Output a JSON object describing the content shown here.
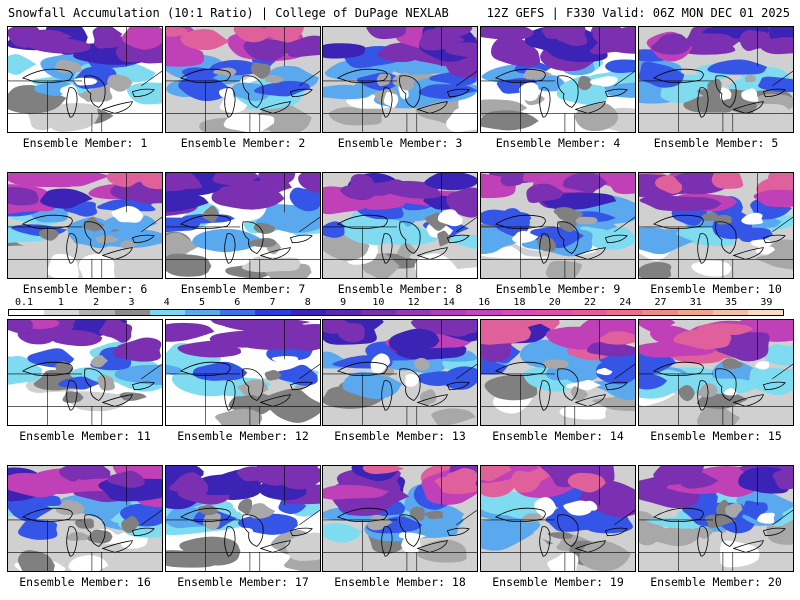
{
  "header": {
    "left": "Snowfall Accumulation (10:1 Ratio) | College of DuPage NEXLAB",
    "right": "12Z GEFS | F330 Valid: 06Z MON DEC 01 2025"
  },
  "members": [
    {
      "label": "Ensemble Member: 1",
      "intensity": 0.45
    },
    {
      "label": "Ensemble Member: 2",
      "intensity": 0.75
    },
    {
      "label": "Ensemble Member: 3",
      "intensity": 0.6
    },
    {
      "label": "Ensemble Member: 4",
      "intensity": 0.3
    },
    {
      "label": "Ensemble Member: 5",
      "intensity": 0.55
    },
    {
      "label": "Ensemble Member: 6",
      "intensity": 0.65
    },
    {
      "label": "Ensemble Member: 7",
      "intensity": 0.35
    },
    {
      "label": "Ensemble Member: 8",
      "intensity": 0.55
    },
    {
      "label": "Ensemble Member: 9",
      "intensity": 0.6
    },
    {
      "label": "Ensemble Member: 10",
      "intensity": 0.75
    },
    {
      "label": "Ensemble Member: 11",
      "intensity": 0.45
    },
    {
      "label": "Ensemble Member: 12",
      "intensity": 0.4
    },
    {
      "label": "Ensemble Member: 13",
      "intensity": 0.6
    },
    {
      "label": "Ensemble Member: 14",
      "intensity": 0.8
    },
    {
      "label": "Ensemble Member: 15",
      "intensity": 0.7
    },
    {
      "label": "Ensemble Member: 16",
      "intensity": 0.6
    },
    {
      "label": "Ensemble Member: 17",
      "intensity": 0.3
    },
    {
      "label": "Ensemble Member: 18",
      "intensity": 0.65
    },
    {
      "label": "Ensemble Member: 19",
      "intensity": 0.7
    },
    {
      "label": "Ensemble Member: 20",
      "intensity": 0.55
    }
  ],
  "colorbar": {
    "labels": [
      "0.1",
      "1",
      "2",
      "3",
      "4",
      "5",
      "6",
      "7",
      "8",
      "9",
      "10",
      "12",
      "14",
      "16",
      "18",
      "20",
      "22",
      "24",
      "27",
      "31",
      "35",
      "39"
    ],
    "colors": [
      "#ffffff",
      "#d9d9d9",
      "#b3b3b3",
      "#8c8c8c",
      "#79d9f2",
      "#5aa9ee",
      "#3f72e8",
      "#2c3fd8",
      "#3b24b8",
      "#5a2ab0",
      "#7a30b0",
      "#9838b8",
      "#b33cc0",
      "#c845c0",
      "#d84ab8",
      "#e04fa8",
      "#e85a98",
      "#ee6f8c",
      "#f08a88",
      "#f2a48e",
      "#f5c0a8",
      "#f8dcc6"
    ]
  },
  "palette": {
    "white": "#ffffff",
    "gray1": "#d0d0d0",
    "gray2": "#a8a8a8",
    "gray3": "#808080",
    "cyan": "#7fdcf0",
    "blue1": "#5aa9ee",
    "blue2": "#3555e6",
    "indigo": "#3a23b5",
    "purple": "#7a30b0",
    "magenta": "#c040b8",
    "pink": "#e0609c"
  }
}
